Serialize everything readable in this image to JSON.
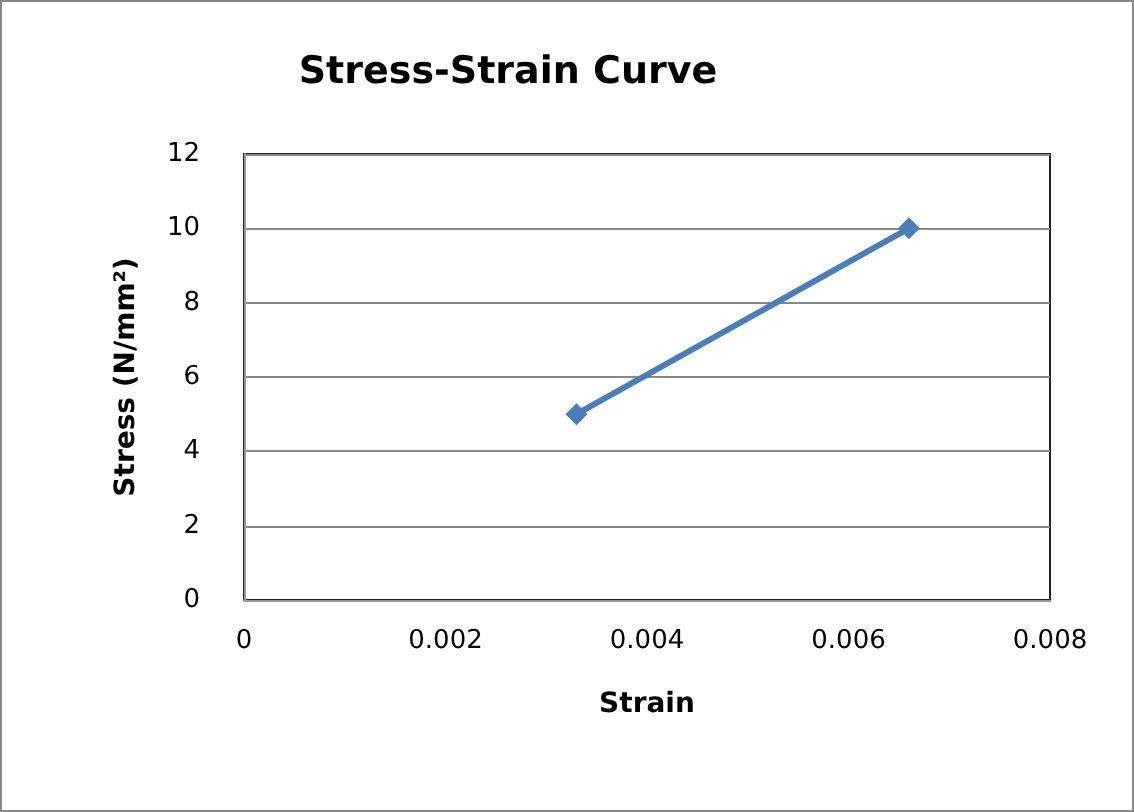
{
  "chart_data": {
    "type": "line",
    "title": "Stress-Strain Curve",
    "xlabel": "Strain",
    "ylabel": "Stress (N/mm²)",
    "x": [
      0.0033,
      0.0066
    ],
    "series": [
      {
        "color": "#4a7ebb",
        "values": [
          5,
          10
        ]
      }
    ],
    "xlim": [
      0,
      0.008
    ],
    "xticks": [
      0,
      0.002,
      0.004,
      0.006,
      0.008
    ],
    "ylim": [
      0,
      12
    ],
    "yticks": [
      0,
      2,
      4,
      6,
      8,
      10,
      12
    ],
    "grid": "y",
    "marker": "diamond",
    "line_style": "solid"
  }
}
